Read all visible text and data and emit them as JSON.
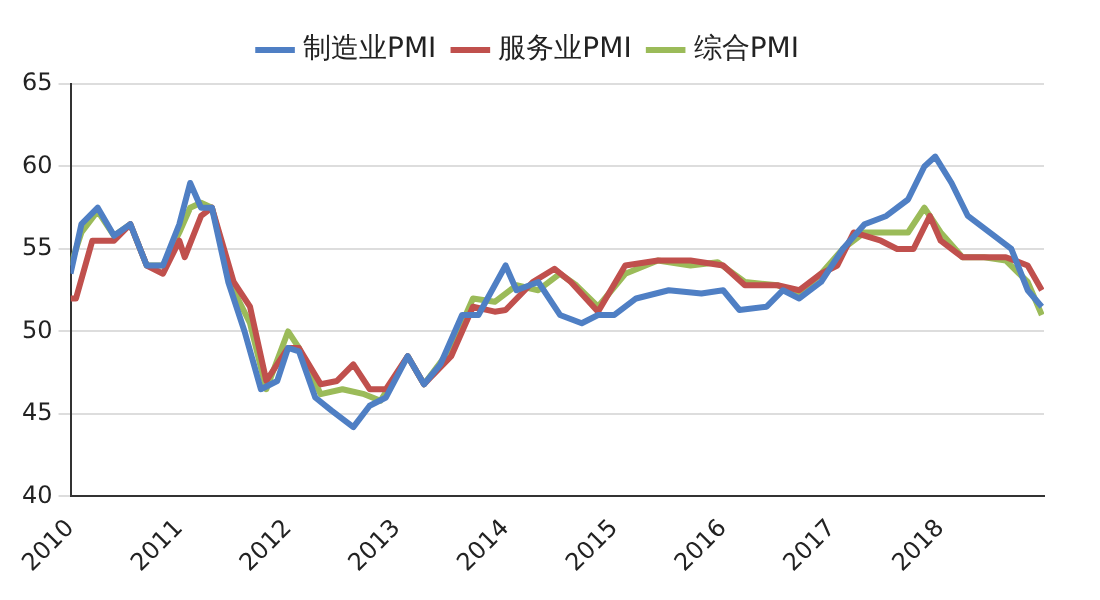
{
  "chart_data": {
    "type": "line",
    "legend": "top",
    "grid": "y",
    "marker": "none",
    "line_style": "solid",
    "xlim": [
      2010,
      2018.95
    ],
    "xticks": [
      2010,
      2011,
      2012,
      2013,
      2014,
      2015,
      2016,
      2017,
      2018
    ],
    "ylim": [
      40,
      65
    ],
    "yticks": [
      40,
      45,
      50,
      55,
      60,
      65
    ],
    "series": [
      {
        "name": "制造业PMI",
        "color": "#4f7fc4",
        "x": [
          2010,
          2010.1,
          2010.25,
          2010.4,
          2010.55,
          2010.7,
          2010.85,
          2011,
          2011.1,
          2011.2,
          2011.3,
          2011.45,
          2011.6,
          2011.75,
          2011.9,
          2012,
          2012.1,
          2012.25,
          2012.4,
          2012.6,
          2012.75,
          2012.9,
          2013.1,
          2013.25,
          2013.4,
          2013.6,
          2013.75,
          2014,
          2014.1,
          2014.3,
          2014.5,
          2014.7,
          2014.85,
          2015,
          2015.2,
          2015.5,
          2015.8,
          2016,
          2016.15,
          2016.4,
          2016.55,
          2016.7,
          2016.9,
          2017.1,
          2017.3,
          2017.5,
          2017.7,
          2017.85,
          2017.95,
          2018.1,
          2018.25,
          2018.45,
          2018.65,
          2018.8,
          2018.93
        ],
        "values": [
          53.5,
          56.5,
          57.5,
          55.8,
          56.5,
          54,
          54,
          56.5,
          59,
          57.5,
          57.5,
          53,
          50,
          46.5,
          47,
          49,
          48.8,
          46,
          45.2,
          44.2,
          45.5,
          46,
          48.5,
          46.8,
          48,
          51,
          51,
          54,
          52.5,
          53,
          51,
          50.5,
          51,
          51,
          52,
          52.5,
          52.3,
          52.5,
          51.3,
          51.5,
          52.5,
          52,
          53,
          55,
          56.5,
          57,
          58,
          60,
          60.6,
          59,
          57,
          56,
          55,
          52.5,
          51.5
        ]
      },
      {
        "name": "服务业PMI",
        "color": "#c0504d",
        "x": [
          2010,
          2010.05,
          2010.2,
          2010.4,
          2010.55,
          2010.7,
          2010.85,
          2011,
          2011.05,
          2011.2,
          2011.3,
          2011.5,
          2011.65,
          2011.8,
          2012,
          2012.1,
          2012.3,
          2012.45,
          2012.6,
          2012.75,
          2012.9,
          2013.1,
          2013.25,
          2013.5,
          2013.7,
          2013.9,
          2014,
          2014.25,
          2014.45,
          2014.6,
          2014.85,
          2015.1,
          2015.4,
          2015.7,
          2016,
          2016.2,
          2016.5,
          2016.7,
          2016.9,
          2017.05,
          2017.2,
          2017.45,
          2017.6,
          2017.75,
          2017.9,
          2018,
          2018.2,
          2018.4,
          2018.6,
          2018.8,
          2018.93
        ],
        "values": [
          52,
          52,
          55.5,
          55.5,
          56.5,
          54,
          53.5,
          55.5,
          54.5,
          57,
          57.5,
          53,
          51.5,
          47,
          49,
          49,
          46.8,
          47,
          48,
          46.5,
          46.5,
          48.5,
          46.8,
          48.5,
          51.5,
          51.2,
          51.3,
          53,
          53.8,
          53,
          51.2,
          54,
          54.3,
          54.3,
          54,
          52.8,
          52.8,
          52.5,
          53.5,
          54,
          56,
          55.5,
          55,
          55,
          57,
          55.5,
          54.5,
          54.5,
          54.5,
          54,
          52.5
        ]
      },
      {
        "name": "综合PMI",
        "color": "#9bbb59",
        "x": [
          2010,
          2010.1,
          2010.25,
          2010.4,
          2010.55,
          2010.7,
          2010.85,
          2011,
          2011.1,
          2011.2,
          2011.3,
          2011.5,
          2011.65,
          2011.8,
          2012,
          2012.1,
          2012.3,
          2012.5,
          2012.7,
          2012.85,
          2013.1,
          2013.25,
          2013.5,
          2013.7,
          2013.9,
          2014.1,
          2014.3,
          2014.5,
          2014.65,
          2014.85,
          2015.1,
          2015.4,
          2015.7,
          2015.95,
          2016.2,
          2016.5,
          2016.7,
          2016.9,
          2017.1,
          2017.3,
          2017.5,
          2017.7,
          2017.85,
          2018,
          2018.2,
          2018.4,
          2018.6,
          2018.8,
          2018.93
        ],
        "values": [
          54,
          56,
          57.3,
          55.8,
          56.5,
          54,
          54,
          56,
          57.5,
          57.8,
          57.5,
          52.5,
          50.5,
          46.5,
          50,
          49,
          46.2,
          46.5,
          46.2,
          45.8,
          48.5,
          46.8,
          49,
          52,
          51.8,
          52.8,
          52.5,
          53.5,
          52.8,
          51.5,
          53.5,
          54.3,
          54,
          54.2,
          53,
          52.8,
          52.3,
          53.5,
          55,
          56,
          56,
          56,
          57.5,
          56,
          54.5,
          54.5,
          54.3,
          53,
          51
        ]
      }
    ]
  }
}
